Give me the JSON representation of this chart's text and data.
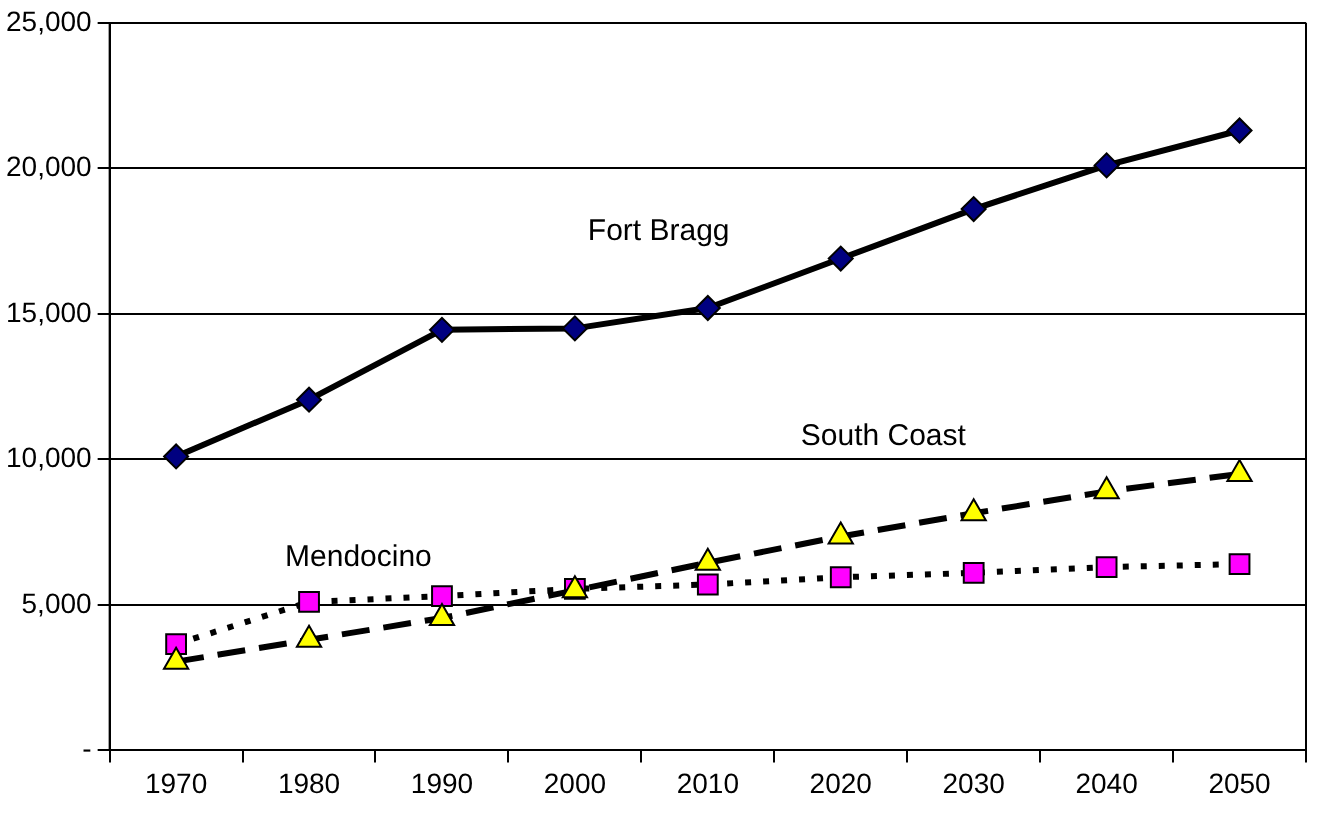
{
  "chart_data": {
    "type": "line",
    "categories": [
      "1970",
      "1980",
      "1990",
      "2000",
      "2010",
      "2020",
      "2030",
      "2040",
      "2050"
    ],
    "series": [
      {
        "name": "Fort Bragg",
        "color": "#000080",
        "marker": "diamond",
        "line_style": "solid",
        "values": [
          10100,
          12050,
          14450,
          14500,
          15200,
          16900,
          18600,
          20100,
          21300
        ]
      },
      {
        "name": "Mendocino",
        "color": "#ff00ff",
        "marker": "square",
        "line_style": "dotted",
        "values": [
          3650,
          5100,
          5300,
          5550,
          5700,
          5950,
          6100,
          6300,
          6400
        ]
      },
      {
        "name": "South Coast",
        "color": "#ffff00",
        "marker": "triangle",
        "line_style": "dashed",
        "values": [
          3050,
          3800,
          4550,
          5500,
          6450,
          7350,
          8150,
          8900,
          9500
        ]
      }
    ],
    "ylim": [
      0,
      25000
    ],
    "yticks": [
      {
        "value": 0,
        "label": "-"
      },
      {
        "value": 5000,
        "label": "5,000"
      },
      {
        "value": 10000,
        "label": "10,000"
      },
      {
        "value": 15000,
        "label": "15,000"
      },
      {
        "value": 20000,
        "label": "20,000"
      },
      {
        "value": 25000,
        "label": "25,000"
      }
    ],
    "grid": "y",
    "legend": false
  }
}
